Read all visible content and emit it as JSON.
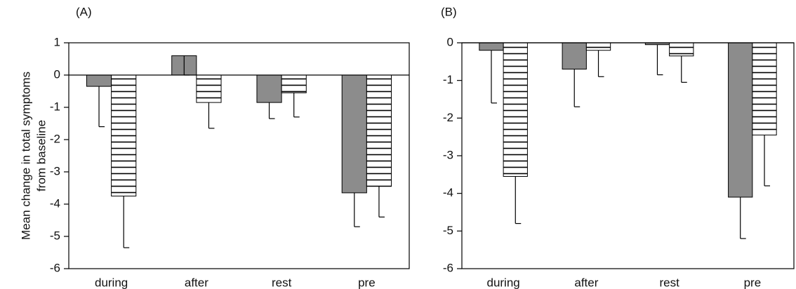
{
  "chart_data": [
    {
      "type": "bar",
      "title": "(A)",
      "y_label": [
        "Mean change in total symptoms",
        "from baseline"
      ],
      "categories": [
        "during",
        "after",
        "rest",
        "pre"
      ],
      "ylim": [
        -6,
        1
      ],
      "yticks": [
        -6,
        -5,
        -4,
        -3,
        -2,
        -1,
        0,
        1
      ],
      "series": [
        {
          "color": "#8c8c8c",
          "pattern": "solid",
          "values": [
            -0.35,
            0.6,
            -0.85,
            -3.65
          ],
          "errors": [
            1.25,
            0.6,
            0.5,
            1.05
          ]
        },
        {
          "color": "#000000",
          "pattern": "hlines",
          "values": [
            -3.75,
            -0.85,
            -0.55,
            -3.45
          ],
          "errors": [
            1.6,
            0.8,
            0.75,
            0.95
          ]
        }
      ]
    },
    {
      "type": "bar",
      "title": "(B)",
      "categories": [
        "during",
        "after",
        "rest",
        "pre"
      ],
      "ylim": [
        -6,
        0
      ],
      "yticks": [
        -6,
        -5,
        -4,
        -3,
        -2,
        -1,
        0
      ],
      "series": [
        {
          "color": "#8c8c8c",
          "pattern": "solid",
          "values": [
            -0.2,
            -0.7,
            -0.05,
            -4.1
          ],
          "errors": [
            1.4,
            1.0,
            0.8,
            1.1
          ]
        },
        {
          "color": "#000000",
          "pattern": "hlines",
          "values": [
            -3.55,
            -0.2,
            -0.35,
            -2.45
          ],
          "errors": [
            1.25,
            0.7,
            0.7,
            1.35
          ]
        }
      ]
    }
  ]
}
